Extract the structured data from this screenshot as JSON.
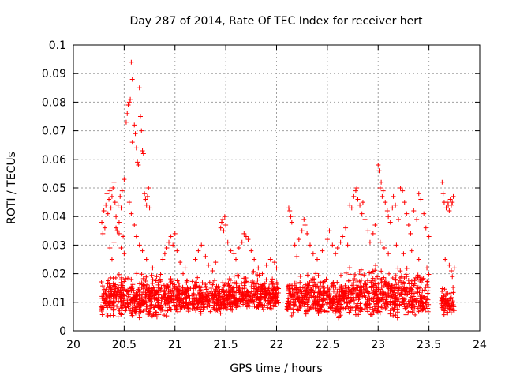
{
  "chart_data": {
    "type": "scatter",
    "title": "Day 287 of 2014, Rate Of TEC Index for receiver hert",
    "xlabel": "GPS time / hours",
    "ylabel": "ROTI / TECUs",
    "xlim": [
      20,
      24
    ],
    "ylim": [
      0,
      0.1
    ],
    "xticks": [
      20,
      20.5,
      21,
      21.5,
      22,
      22.5,
      23,
      23.5,
      24
    ],
    "xtick_labels": [
      "20",
      "20.5",
      "21",
      "21.5",
      "22",
      "22.5",
      "23",
      "23.5",
      "24"
    ],
    "yticks": [
      0,
      0.01,
      0.02,
      0.03,
      0.04,
      0.05,
      0.06,
      0.07,
      0.08,
      0.09,
      0.1
    ],
    "ytick_labels": [
      "0",
      "0.01",
      "0.02",
      "0.03",
      "0.04",
      "0.05",
      "0.06",
      "0.07",
      "0.08",
      "0.09",
      "0.1"
    ],
    "grid": true,
    "marker": "+",
    "color": "#ff0000",
    "series": [
      {
        "points": [
          [
            20.28,
            0.038
          ],
          [
            20.29,
            0.034
          ],
          [
            20.3,
            0.042
          ],
          [
            20.31,
            0.036
          ],
          [
            20.32,
            0.044
          ],
          [
            20.33,
            0.048
          ],
          [
            20.34,
            0.041
          ],
          [
            20.35,
            0.046
          ],
          [
            20.36,
            0.049
          ],
          [
            20.37,
            0.043
          ],
          [
            20.38,
            0.047
          ],
          [
            20.39,
            0.05
          ],
          [
            20.4,
            0.052
          ],
          [
            20.41,
            0.045
          ],
          [
            20.42,
            0.04
          ],
          [
            20.43,
            0.035
          ],
          [
            20.44,
            0.044
          ],
          [
            20.45,
            0.038
          ],
          [
            20.46,
            0.047
          ],
          [
            20.47,
            0.043
          ],
          [
            20.48,
            0.049
          ],
          [
            20.5,
            0.053
          ],
          [
            20.49,
            0.033
          ],
          [
            20.36,
            0.029
          ],
          [
            20.38,
            0.025
          ],
          [
            20.4,
            0.031
          ],
          [
            20.42,
            0.036
          ],
          [
            20.45,
            0.034
          ],
          [
            20.47,
            0.029
          ],
          [
            20.5,
            0.027
          ],
          [
            20.53,
            0.076
          ],
          [
            20.54,
            0.079
          ],
          [
            20.55,
            0.08
          ],
          [
            20.56,
            0.081
          ],
          [
            20.52,
            0.073
          ],
          [
            20.57,
            0.094
          ],
          [
            20.58,
            0.088
          ],
          [
            20.6,
            0.072
          ],
          [
            20.62,
            0.064
          ],
          [
            20.63,
            0.059
          ],
          [
            20.64,
            0.058
          ],
          [
            20.65,
            0.085
          ],
          [
            20.66,
            0.075
          ],
          [
            20.67,
            0.07
          ],
          [
            20.68,
            0.063
          ],
          [
            20.69,
            0.062
          ],
          [
            20.61,
            0.069
          ],
          [
            20.58,
            0.066
          ],
          [
            20.7,
            0.048
          ],
          [
            20.71,
            0.046
          ],
          [
            20.72,
            0.044
          ],
          [
            20.73,
            0.047
          ],
          [
            20.74,
            0.05
          ],
          [
            20.75,
            0.043
          ],
          [
            20.55,
            0.045
          ],
          [
            20.57,
            0.041
          ],
          [
            20.6,
            0.037
          ],
          [
            20.62,
            0.033
          ],
          [
            20.65,
            0.03
          ],
          [
            20.68,
            0.028
          ],
          [
            20.72,
            0.025
          ],
          [
            20.78,
            0.022
          ],
          [
            20.82,
            0.019
          ],
          [
            20.88,
            0.025
          ],
          [
            20.9,
            0.027
          ],
          [
            20.92,
            0.029
          ],
          [
            20.94,
            0.031
          ],
          [
            20.96,
            0.033
          ],
          [
            20.98,
            0.03
          ],
          [
            21.0,
            0.034
          ],
          [
            21.02,
            0.028
          ],
          [
            21.05,
            0.024
          ],
          [
            21.08,
            0.02
          ],
          [
            21.1,
            0.022
          ],
          [
            21.2,
            0.025
          ],
          [
            21.23,
            0.028
          ],
          [
            21.26,
            0.03
          ],
          [
            21.3,
            0.026
          ],
          [
            21.33,
            0.023
          ],
          [
            21.37,
            0.021
          ],
          [
            21.4,
            0.024
          ],
          [
            21.45,
            0.036
          ],
          [
            21.46,
            0.038
          ],
          [
            21.47,
            0.039
          ],
          [
            21.48,
            0.035
          ],
          [
            21.49,
            0.04
          ],
          [
            21.5,
            0.037
          ],
          [
            21.52,
            0.031
          ],
          [
            21.55,
            0.028
          ],
          [
            21.58,
            0.027
          ],
          [
            21.6,
            0.025
          ],
          [
            21.63,
            0.029
          ],
          [
            21.66,
            0.031
          ],
          [
            21.68,
            0.034
          ],
          [
            21.7,
            0.033
          ],
          [
            21.72,
            0.032
          ],
          [
            21.75,
            0.028
          ],
          [
            21.78,
            0.025
          ],
          [
            21.82,
            0.022
          ],
          [
            21.86,
            0.02
          ],
          [
            21.9,
            0.023
          ],
          [
            21.94,
            0.025
          ],
          [
            21.98,
            0.024
          ],
          [
            22.0,
            0.022
          ],
          [
            22.12,
            0.043
          ],
          [
            22.13,
            0.042
          ],
          [
            22.14,
            0.04
          ],
          [
            22.15,
            0.038
          ],
          [
            22.18,
            0.03
          ],
          [
            22.2,
            0.026
          ],
          [
            22.22,
            0.032
          ],
          [
            22.25,
            0.035
          ],
          [
            22.27,
            0.039
          ],
          [
            22.28,
            0.037
          ],
          [
            22.3,
            0.034
          ],
          [
            22.33,
            0.03
          ],
          [
            22.36,
            0.027
          ],
          [
            22.4,
            0.025
          ],
          [
            22.45,
            0.028
          ],
          [
            22.5,
            0.032
          ],
          [
            22.52,
            0.035
          ],
          [
            22.55,
            0.03
          ],
          [
            22.58,
            0.027
          ],
          [
            22.6,
            0.029
          ],
          [
            22.63,
            0.031
          ],
          [
            22.65,
            0.033
          ],
          [
            22.68,
            0.036
          ],
          [
            22.7,
            0.03
          ],
          [
            22.72,
            0.044
          ],
          [
            22.74,
            0.043
          ],
          [
            22.76,
            0.047
          ],
          [
            22.78,
            0.049
          ],
          [
            22.79,
            0.05
          ],
          [
            22.8,
            0.046
          ],
          [
            22.82,
            0.044
          ],
          [
            22.84,
            0.041
          ],
          [
            22.85,
            0.045
          ],
          [
            22.87,
            0.039
          ],
          [
            22.9,
            0.035
          ],
          [
            22.92,
            0.031
          ],
          [
            22.95,
            0.034
          ],
          [
            22.97,
            0.037
          ],
          [
            23.0,
            0.058
          ],
          [
            23.01,
            0.056
          ],
          [
            23.02,
            0.05
          ],
          [
            23.03,
            0.052
          ],
          [
            23.04,
            0.047
          ],
          [
            23.05,
            0.049
          ],
          [
            23.07,
            0.045
          ],
          [
            23.09,
            0.042
          ],
          [
            23.1,
            0.04
          ],
          [
            23.12,
            0.038
          ],
          [
            23.14,
            0.043
          ],
          [
            23.15,
            0.047
          ],
          [
            23.17,
            0.044
          ],
          [
            23.2,
            0.039
          ],
          [
            23.22,
            0.05
          ],
          [
            23.24,
            0.049
          ],
          [
            23.26,
            0.045
          ],
          [
            23.28,
            0.041
          ],
          [
            23.3,
            0.037
          ],
          [
            23.32,
            0.034
          ],
          [
            23.35,
            0.042
          ],
          [
            23.38,
            0.039
          ],
          [
            23.4,
            0.048
          ],
          [
            23.42,
            0.046
          ],
          [
            23.45,
            0.041
          ],
          [
            23.47,
            0.036
          ],
          [
            23.5,
            0.033
          ],
          [
            23.02,
            0.031
          ],
          [
            23.06,
            0.029
          ],
          [
            23.1,
            0.027
          ],
          [
            23.18,
            0.03
          ],
          [
            23.25,
            0.027
          ],
          [
            23.33,
            0.028
          ],
          [
            23.4,
            0.025
          ],
          [
            23.48,
            0.022
          ],
          [
            23.63,
            0.052
          ],
          [
            23.64,
            0.048
          ],
          [
            23.65,
            0.045
          ],
          [
            23.67,
            0.043
          ],
          [
            23.68,
            0.045
          ],
          [
            23.69,
            0.044
          ],
          [
            23.7,
            0.042
          ],
          [
            23.71,
            0.046
          ],
          [
            23.72,
            0.044
          ],
          [
            23.73,
            0.045
          ],
          [
            23.74,
            0.047
          ],
          [
            23.66,
            0.025
          ],
          [
            23.7,
            0.023
          ],
          [
            23.72,
            0.021
          ],
          [
            23.73,
            0.019
          ],
          [
            23.75,
            0.022
          ]
        ]
      }
    ],
    "dense_bands": [
      {
        "x": [
          20.27,
          20.98
        ],
        "y": [
          0.004,
          0.02
        ],
        "count": 460
      },
      {
        "x": [
          20.98,
          21.5
        ],
        "y": [
          0.005,
          0.018
        ],
        "count": 320
      },
      {
        "x": [
          21.5,
          22.02
        ],
        "y": [
          0.006,
          0.02
        ],
        "count": 330
      },
      {
        "x": [
          22.1,
          22.7
        ],
        "y": [
          0.004,
          0.02
        ],
        "count": 360
      },
      {
        "x": [
          22.7,
          23.5
        ],
        "y": [
          0.004,
          0.022
        ],
        "count": 470
      },
      {
        "x": [
          23.62,
          23.75
        ],
        "y": [
          0.005,
          0.015
        ],
        "count": 70
      }
    ]
  }
}
